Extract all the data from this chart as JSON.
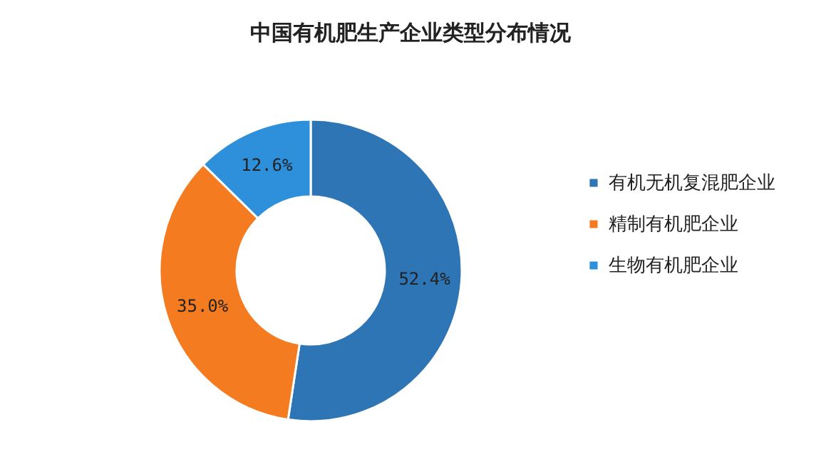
{
  "chart_data": {
    "type": "donut",
    "title": "中国有机肥生产企业类型分布情况",
    "categories": [
      "有机无机复混肥企业",
      "精制有机肥企业",
      "生物有机肥企业"
    ],
    "values": [
      52.4,
      35.0,
      12.6
    ],
    "colors": [
      "#2e75b6",
      "#f47b20",
      "#2e8fdb"
    ],
    "value_labels": [
      "52.4%",
      "35.0%",
      "12.6%"
    ],
    "legend": "right"
  }
}
